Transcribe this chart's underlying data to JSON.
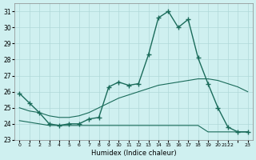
{
  "xlabel": "Humidex (Indice chaleur)",
  "xlim": [
    -0.5,
    23.5
  ],
  "ylim": [
    23,
    31.5
  ],
  "yticks": [
    23,
    24,
    25,
    26,
    27,
    28,
    29,
    30,
    31
  ],
  "xtick_positions": [
    0,
    1,
    2,
    3,
    4,
    5,
    6,
    7,
    8,
    9,
    10,
    11,
    12,
    13,
    14,
    15,
    16,
    17,
    18,
    19,
    20,
    21,
    22,
    23
  ],
  "xtick_labels": [
    "0",
    "1",
    "2",
    "3",
    "4",
    "5",
    "6",
    "7",
    "8",
    "9",
    "10",
    "11",
    "12",
    "13",
    "14",
    "15",
    "16",
    "17",
    "18",
    "19",
    "20",
    "2122",
    "",
    "23"
  ],
  "background_color": "#cff0f0",
  "grid_color": "#b0d8d8",
  "line_color": "#1a6b5a",
  "line1_x": [
    0,
    1,
    2,
    3,
    4,
    5,
    6,
    7,
    8,
    9,
    10,
    11,
    12,
    13,
    14,
    15,
    16,
    17,
    18,
    19,
    20,
    21,
    22,
    23
  ],
  "line1_y": [
    25.9,
    25.3,
    24.7,
    24.0,
    23.9,
    24.0,
    24.0,
    24.3,
    24.4,
    26.3,
    26.6,
    26.4,
    26.5,
    28.3,
    30.6,
    31.0,
    30.0,
    30.5,
    28.1,
    26.5,
    25.0,
    23.8,
    23.5,
    23.5
  ],
  "line2_x": [
    0,
    1,
    2,
    3,
    4,
    5,
    6,
    7,
    8,
    9,
    10,
    11,
    12,
    13,
    14,
    15,
    16,
    17,
    18,
    19,
    20,
    21,
    22,
    23
  ],
  "line2_y": [
    24.2,
    24.1,
    24.0,
    23.9,
    23.9,
    23.9,
    23.9,
    23.9,
    23.9,
    23.9,
    23.9,
    23.9,
    23.9,
    23.9,
    23.9,
    23.9,
    23.9,
    23.9,
    23.9,
    23.5,
    23.5,
    23.5,
    23.5,
    23.5
  ],
  "line3_x": [
    0,
    1,
    2,
    3,
    4,
    5,
    6,
    7,
    8,
    9,
    10,
    11,
    12,
    13,
    14,
    15,
    16,
    17,
    18,
    19,
    20,
    21,
    22,
    23
  ],
  "line3_y": [
    25.0,
    24.8,
    24.7,
    24.5,
    24.4,
    24.4,
    24.5,
    24.7,
    25.0,
    25.3,
    25.6,
    25.8,
    26.0,
    26.2,
    26.4,
    26.5,
    26.6,
    26.7,
    26.8,
    26.8,
    26.7,
    26.5,
    26.3,
    26.0
  ]
}
